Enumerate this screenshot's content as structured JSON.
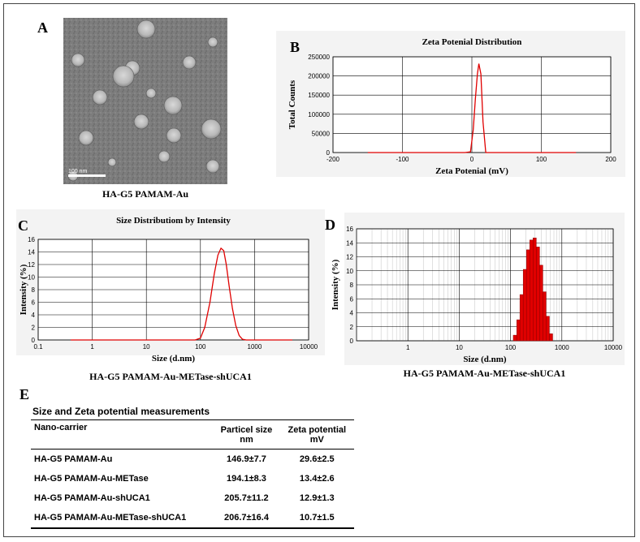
{
  "panel_a": {
    "letter": "A",
    "scale_bar_label": "100 nm",
    "caption": "HA-G5 PAMAM-Au"
  },
  "panel_b": {
    "letter": "B"
  },
  "panel_c": {
    "letter": "C",
    "caption": "HA-G5 PAMAM-Au-METase-shUCA1"
  },
  "panel_d": {
    "letter": "D",
    "caption": "HA-G5 PAMAM-Au-METase-shUCA1"
  },
  "panel_e": {
    "letter": "E",
    "title": "Size and Zeta potential measurements",
    "headers": {
      "col1": "Nano-carrier",
      "col2a": "Particel size",
      "col2b": "nm",
      "col3a": "Zeta potential",
      "col3b": "mV"
    },
    "rows": [
      {
        "carrier": "HA-G5 PAMAM-Au",
        "size": "146.9±7.7",
        "zeta": "29.6±2.5"
      },
      {
        "carrier": "HA-G5 PAMAM-Au-METase",
        "size": "194.1±8.3",
        "zeta": "13.4±2.6"
      },
      {
        "carrier": "HA-G5 PAMAM-Au-shUCA1",
        "size": "205.7±11.2",
        "zeta": "12.9±1.3"
      },
      {
        "carrier": "HA-G5 PAMAM-Au-METase-shUCA1",
        "size": "206.7±16.4",
        "zeta": "10.7±1.5"
      }
    ]
  },
  "colors": {
    "series": "#e00000",
    "bar_edge": "#8b0000",
    "grid": "#000000"
  },
  "chart_data": [
    {
      "id": "zeta",
      "type": "line",
      "title": "Zeta Potenial Distribution",
      "xlabel": "Zeta Potenial (mV)",
      "ylabel": "Total Counts",
      "xlim": [
        -200,
        200
      ],
      "ylim": [
        0,
        250000
      ],
      "xticks": [
        -200,
        -100,
        0,
        100,
        200
      ],
      "yticks": [
        0,
        50000,
        100000,
        150000,
        200000,
        250000
      ],
      "ytick_labels": [
        "0",
        "50000",
        "100000",
        "150000",
        "200000",
        "250000"
      ],
      "x": [
        -150,
        -10,
        -2,
        2,
        5,
        8,
        10,
        13,
        16,
        20,
        150
      ],
      "y": [
        0,
        0,
        2000,
        60000,
        140000,
        205000,
        232000,
        205000,
        80000,
        0,
        0
      ],
      "grid": true
    },
    {
      "id": "size_line",
      "type": "line",
      "title": "Size Distributiom by Intensity",
      "xlabel": "Size (d.nm)",
      "ylabel": "Intensity (%)",
      "xscale": "log",
      "xlim": [
        0.1,
        10000
      ],
      "ylim": [
        0,
        16
      ],
      "xticks": [
        0.1,
        1,
        10,
        100,
        1000,
        10000
      ],
      "xtick_labels": [
        "0.1",
        "1",
        "10",
        "100",
        "1000",
        "10000"
      ],
      "yticks": [
        0,
        2,
        4,
        6,
        8,
        10,
        12,
        14,
        16
      ],
      "x": [
        0.4,
        80,
        100,
        120,
        150,
        180,
        210,
        240,
        270,
        300,
        340,
        390,
        450,
        520,
        600,
        700,
        5000
      ],
      "y": [
        0,
        0,
        0.3,
        2,
        6,
        10.5,
        13.5,
        14.6,
        14.2,
        12,
        8.5,
        5,
        2.3,
        0.7,
        0.1,
        0,
        0
      ],
      "grid": true
    },
    {
      "id": "size_hist",
      "type": "bar",
      "title": "",
      "xlabel": "Size (d.nm)",
      "ylabel": "Intensity (%)",
      "xscale": "log",
      "xlim": [
        0.1,
        10000
      ],
      "ylim": [
        0,
        16
      ],
      "xticks": [
        1,
        10,
        100,
        1000,
        10000
      ],
      "xtick_labels": [
        "1",
        "10",
        "100",
        "1000",
        "10000"
      ],
      "yticks": [
        0,
        2,
        4,
        6,
        8,
        10,
        12,
        14,
        16
      ],
      "bin_centers": [
        122,
        142,
        164,
        190,
        220,
        255,
        295,
        342,
        396,
        458,
        531,
        615
      ],
      "values": [
        0.8,
        3.0,
        6.6,
        10.2,
        13.0,
        14.4,
        14.7,
        13.4,
        10.8,
        7.0,
        3.5,
        1.0
      ],
      "grid": true
    }
  ]
}
